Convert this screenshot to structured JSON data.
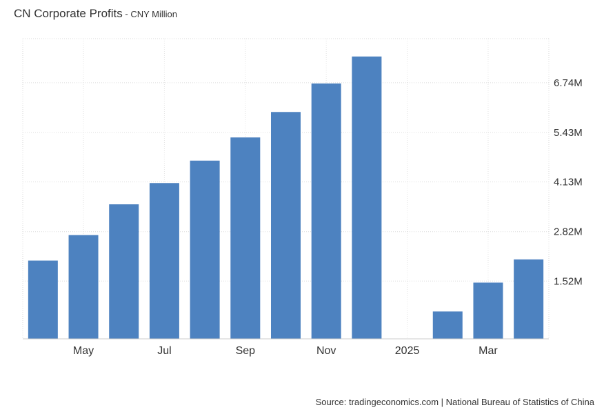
{
  "chart_data": {
    "type": "bar",
    "title": "CN Corporate Profits",
    "subtitle": " - CNY Million",
    "categories": [
      "2024-04",
      "2024-05",
      "2024-06",
      "2024-07",
      "2024-08",
      "2024-09",
      "2024-10",
      "2024-11",
      "2024-12",
      "2025-01",
      "2025-02",
      "2025-03",
      "2025-04"
    ],
    "values": [
      2.06,
      2.73,
      3.54,
      4.1,
      4.69,
      5.3,
      5.97,
      6.72,
      7.43,
      null,
      0.72,
      1.48,
      2.09
    ],
    "x_tick_labels": [
      "May",
      "Jul",
      "Sep",
      "Nov",
      "2025",
      "Mar"
    ],
    "x_tick_categories": [
      "2024-05",
      "2024-07",
      "2024-09",
      "2024-11",
      "2025-01",
      "2025-03"
    ],
    "y_ticks": [
      1.52,
      2.82,
      4.13,
      5.43,
      6.74
    ],
    "y_tick_labels": [
      "1.52M",
      "2.82M",
      "4.13M",
      "5.43M",
      "6.74M"
    ],
    "ylim": [
      0,
      7.9
    ],
    "y_axis_position": "right",
    "grid": true,
    "bar_color": "#4d82c0"
  },
  "source": "Source: tradingeconomics.com | National Bureau of Statistics of China"
}
